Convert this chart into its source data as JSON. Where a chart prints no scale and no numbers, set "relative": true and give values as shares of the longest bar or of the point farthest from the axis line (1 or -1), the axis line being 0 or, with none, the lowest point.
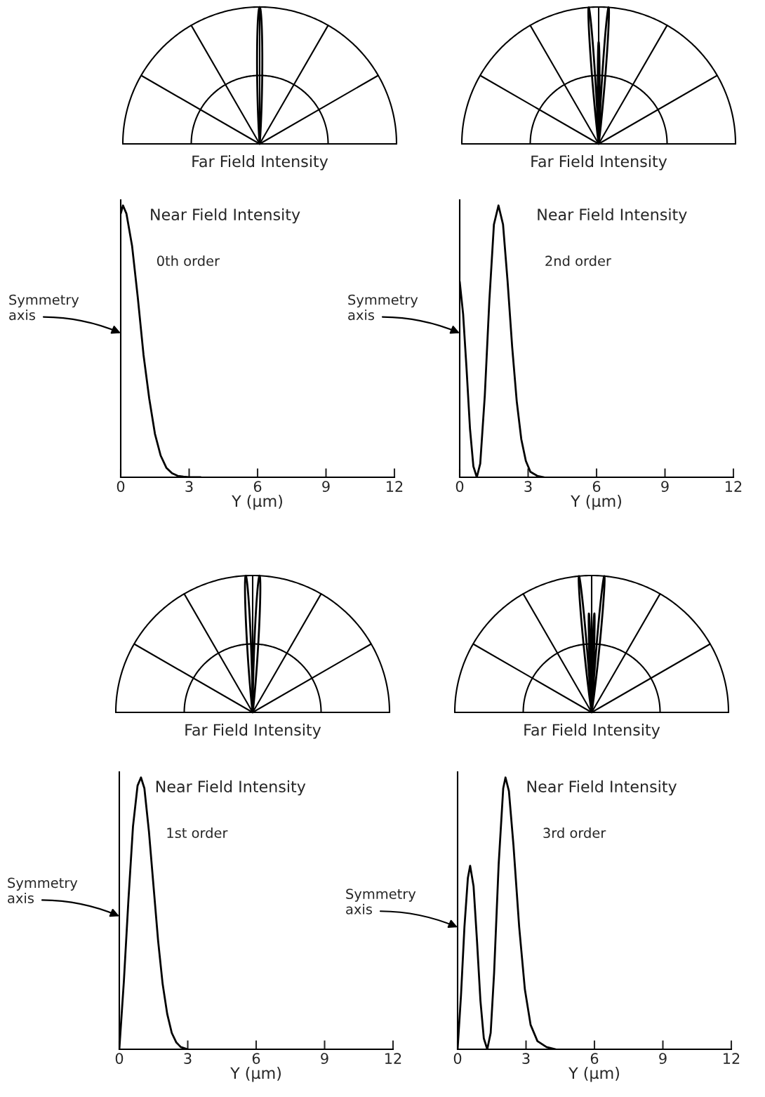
{
  "chart_data": [
    {
      "type": "other",
      "title": "Far Field Intensity"
    },
    {
      "type": "line",
      "relative": true,
      "title": "Near Field Intensity",
      "xlabel": "Y (μm)",
      "xlim": [
        0,
        12
      ],
      "xticks": [
        0,
        3,
        6,
        9,
        12
      ],
      "grid": false,
      "legend": false,
      "tick_labels": "x",
      "annotations": [
        "0th order",
        "Symmetry\naxis"
      ],
      "x": [
        0,
        0.1,
        0.25,
        0.5,
        0.75,
        1.0,
        1.25,
        1.5,
        1.75,
        2.0,
        2.25,
        2.5,
        2.75,
        3.0,
        3.5
      ],
      "series": [
        {
          "color": "#000000",
          "values": [
            0.97,
            1,
            0.97,
            0.85,
            0.66,
            0.45,
            0.29,
            0.16,
            0.08,
            0.035,
            0.015,
            0.005,
            0.002,
            0,
            0
          ]
        }
      ]
    },
    {
      "type": "other",
      "title": "Far Field Intensity"
    },
    {
      "type": "line",
      "relative": true,
      "title": "Near Field Intensity",
      "xlabel": "Y (μm)",
      "xlim": [
        0,
        12
      ],
      "xticks": [
        0,
        3,
        6,
        9,
        12
      ],
      "grid": false,
      "legend": false,
      "tick_labels": "x",
      "annotations": [
        "2nd order",
        "Symmetry\naxis"
      ],
      "x": [
        0,
        0.15,
        0.3,
        0.45,
        0.6,
        0.75,
        0.9,
        1.1,
        1.3,
        1.5,
        1.7,
        1.9,
        2.1,
        2.3,
        2.5,
        2.7,
        2.9,
        3.1,
        3.4,
        3.7
      ],
      "series": [
        {
          "color": "#000000",
          "values": [
            0.72,
            0.6,
            0.4,
            0.18,
            0.04,
            0,
            0.05,
            0.3,
            0.65,
            0.93,
            1,
            0.93,
            0.72,
            0.48,
            0.28,
            0.14,
            0.06,
            0.02,
            0.005,
            0
          ]
        }
      ]
    },
    {
      "type": "other",
      "title": "Far Field Intensity"
    },
    {
      "type": "line",
      "relative": true,
      "title": "Near Field Intensity",
      "xlabel": "Y (μm)",
      "xlim": [
        0,
        12
      ],
      "xticks": [
        0,
        3,
        6,
        9,
        12
      ],
      "grid": false,
      "legend": false,
      "tick_labels": "x",
      "annotations": [
        "1st order",
        "Symmetry\naxis"
      ],
      "x": [
        0,
        0.2,
        0.4,
        0.6,
        0.8,
        0.95,
        1.1,
        1.3,
        1.5,
        1.7,
        1.9,
        2.1,
        2.3,
        2.5,
        2.7,
        3.0
      ],
      "series": [
        {
          "color": "#000000",
          "values": [
            0,
            0.25,
            0.55,
            0.82,
            0.97,
            1,
            0.96,
            0.8,
            0.6,
            0.4,
            0.24,
            0.13,
            0.06,
            0.025,
            0.008,
            0
          ]
        }
      ]
    },
    {
      "type": "other",
      "title": "Far Field Intensity"
    },
    {
      "type": "line",
      "relative": true,
      "title": "Near Field Intensity",
      "xlabel": "Y (μm)",
      "xlim": [
        0,
        12
      ],
      "xticks": [
        0,
        3,
        6,
        9,
        12
      ],
      "grid": false,
      "legend": false,
      "tick_labels": "x",
      "annotations": [
        "3rd order",
        "Symmetry\naxis"
      ],
      "x": [
        0,
        0.15,
        0.3,
        0.45,
        0.55,
        0.7,
        0.85,
        1.0,
        1.15,
        1.3,
        1.45,
        1.6,
        1.8,
        2.0,
        2.1,
        2.25,
        2.45,
        2.7,
        2.95,
        3.2,
        3.5,
        3.9,
        4.3
      ],
      "series": [
        {
          "color": "#000000",
          "values": [
            0,
            0.2,
            0.45,
            0.63,
            0.675,
            0.6,
            0.4,
            0.18,
            0.04,
            0,
            0.06,
            0.28,
            0.68,
            0.96,
            1,
            0.95,
            0.75,
            0.45,
            0.22,
            0.09,
            0.03,
            0.008,
            0
          ]
        }
      ]
    }
  ]
}
